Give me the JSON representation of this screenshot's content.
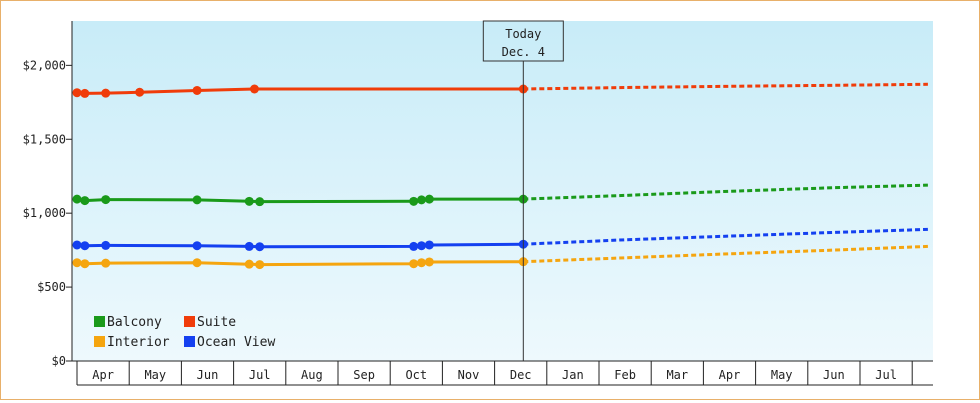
{
  "colors": {
    "balcony": "#1a9a1a",
    "suite": "#f03c0a",
    "interior": "#f5a50f",
    "ocean_view": "#1440f0",
    "plot_bg_top": "#c8ecf8",
    "plot_bg_bottom": "#eef9fd",
    "frame_border": "#e8b06a"
  },
  "chart_data": {
    "type": "line",
    "title": "",
    "xlabel": "",
    "ylabel": "",
    "today_label": [
      "Today",
      "Dec. 4"
    ],
    "ylim": [
      0,
      2300
    ],
    "y_ticks": [
      0,
      500,
      1000,
      1500,
      2000
    ],
    "y_tick_labels": [
      "$0",
      "$500",
      "$1,000",
      "$1,500",
      "$2,000"
    ],
    "x_months": [
      "Apr",
      "May",
      "Jun",
      "Jul",
      "Aug",
      "Sep",
      "Oct",
      "Nov",
      "Dec",
      "Jan",
      "Feb",
      "Mar",
      "Apr",
      "May",
      "Jun",
      "Jul"
    ],
    "legend": {
      "placement": "bottom-left",
      "entries": [
        {
          "label": "Balcony",
          "color_key": "balcony"
        },
        {
          "label": "Suite",
          "color_key": "suite"
        },
        {
          "label": "Interior",
          "color_key": "interior"
        },
        {
          "label": "Ocean View",
          "color_key": "ocean_view"
        }
      ]
    },
    "series": [
      {
        "name": "Suite",
        "color_key": "suite",
        "points": [
          [
            0.0,
            1815
          ],
          [
            0.15,
            1810
          ],
          [
            0.55,
            1812
          ],
          [
            1.2,
            1818
          ],
          [
            2.3,
            1830
          ],
          [
            3.4,
            1840
          ],
          [
            8.55,
            1840
          ]
        ],
        "forecast": [
          [
            8.55,
            1840
          ],
          [
            10.5,
            1850
          ],
          [
            12.5,
            1858
          ],
          [
            14.5,
            1865
          ],
          [
            16.3,
            1872
          ]
        ]
      },
      {
        "name": "Balcony",
        "color_key": "balcony",
        "points": [
          [
            0.0,
            1095
          ],
          [
            0.15,
            1085
          ],
          [
            0.55,
            1092
          ],
          [
            2.3,
            1090
          ],
          [
            3.3,
            1080
          ],
          [
            3.5,
            1078
          ],
          [
            6.45,
            1080
          ],
          [
            6.6,
            1090
          ],
          [
            6.75,
            1095
          ],
          [
            8.55,
            1095
          ]
        ],
        "forecast": [
          [
            8.55,
            1095
          ],
          [
            10.5,
            1120
          ],
          [
            12.5,
            1148
          ],
          [
            14.5,
            1172
          ],
          [
            16.3,
            1190
          ]
        ]
      },
      {
        "name": "Ocean View",
        "color_key": "ocean_view",
        "points": [
          [
            0.0,
            785
          ],
          [
            0.15,
            780
          ],
          [
            0.55,
            782
          ],
          [
            2.3,
            780
          ],
          [
            3.3,
            775
          ],
          [
            3.5,
            773
          ],
          [
            6.45,
            775
          ],
          [
            6.6,
            780
          ],
          [
            6.75,
            785
          ],
          [
            8.55,
            790
          ]
        ],
        "forecast": [
          [
            8.55,
            790
          ],
          [
            10.5,
            820
          ],
          [
            12.5,
            845
          ],
          [
            14.5,
            870
          ],
          [
            16.3,
            890
          ]
        ]
      },
      {
        "name": "Interior",
        "color_key": "interior",
        "points": [
          [
            0.0,
            665
          ],
          [
            0.15,
            658
          ],
          [
            0.55,
            662
          ],
          [
            2.3,
            665
          ],
          [
            3.3,
            655
          ],
          [
            3.5,
            652
          ],
          [
            6.45,
            658
          ],
          [
            6.6,
            665
          ],
          [
            6.75,
            670
          ],
          [
            8.55,
            672
          ]
        ],
        "forecast": [
          [
            8.55,
            672
          ],
          [
            10.5,
            698
          ],
          [
            12.5,
            725
          ],
          [
            14.5,
            750
          ],
          [
            16.3,
            775
          ]
        ]
      }
    ]
  }
}
